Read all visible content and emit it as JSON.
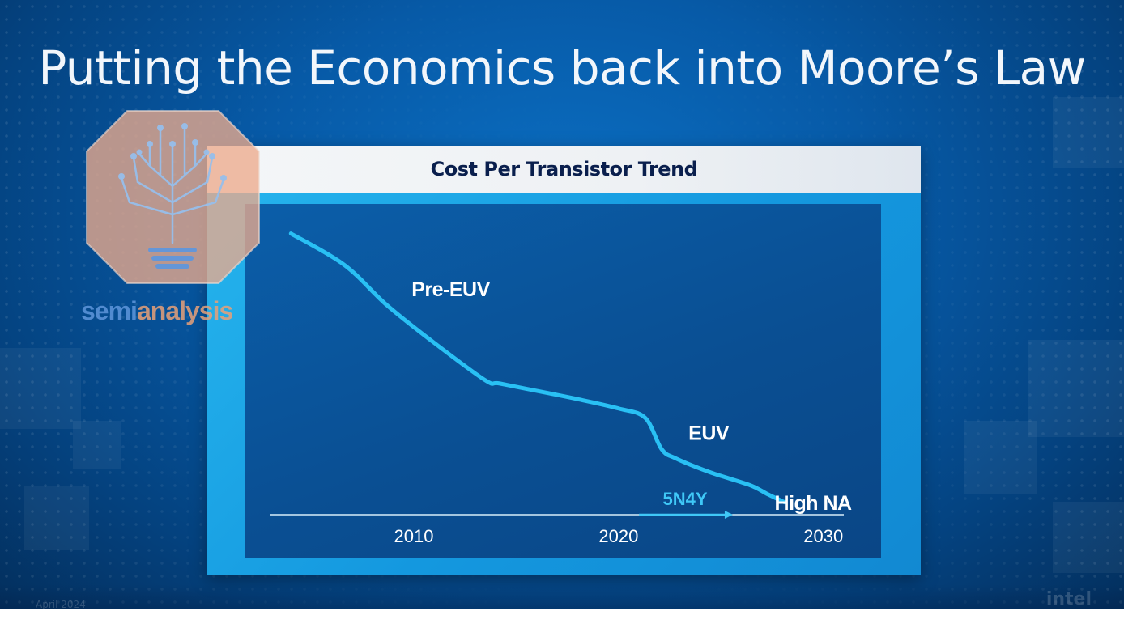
{
  "slide": {
    "title": "Putting the Economics back into Moore’s Law",
    "brand": "intel",
    "date": "April 2024"
  },
  "watermark": {
    "text_part1": "semi",
    "text_part2": "analysis",
    "icon": "lightbulb-circuit-icon"
  },
  "colors": {
    "curve": "#29c0f4",
    "axis": "#d8eefa",
    "arrow_label": "#3fc8f7",
    "panel": "#1aa4e6"
  },
  "chart_data": {
    "type": "line",
    "title": "Cost Per Transistor Trend",
    "xlabel": "",
    "ylabel": "",
    "x_ticks": [
      2010,
      2020,
      2030
    ],
    "xlim": [
      2003,
      2031
    ],
    "ylim": [
      0,
      100
    ],
    "series": [
      {
        "x": [
          2004,
          2006.6,
          2008.7,
          2011,
          2013.5,
          2014.2,
          2016.5,
          2018,
          2020,
          2021.3,
          2022.1,
          2022.8,
          2024.5,
          2026.4,
          2027.3,
          2028.1
        ],
        "y": [
          90,
          80,
          67,
          55,
          43,
          42,
          39,
          37,
          34,
          31,
          21,
          18,
          13.5,
          9.5,
          6.5,
          4
        ]
      }
    ],
    "annotations": [
      {
        "text": "Pre-EUV",
        "x": 2011.8,
        "y": 70
      },
      {
        "text": "EUV",
        "x": 2024.4,
        "y": 24
      },
      {
        "text": "High NA",
        "x": 2029.5,
        "y": 1.5
      }
    ],
    "arrow": {
      "label": "5N4Y",
      "x_start": 2021,
      "x_end": 2025.5
    },
    "grid": false,
    "legend": "none"
  }
}
